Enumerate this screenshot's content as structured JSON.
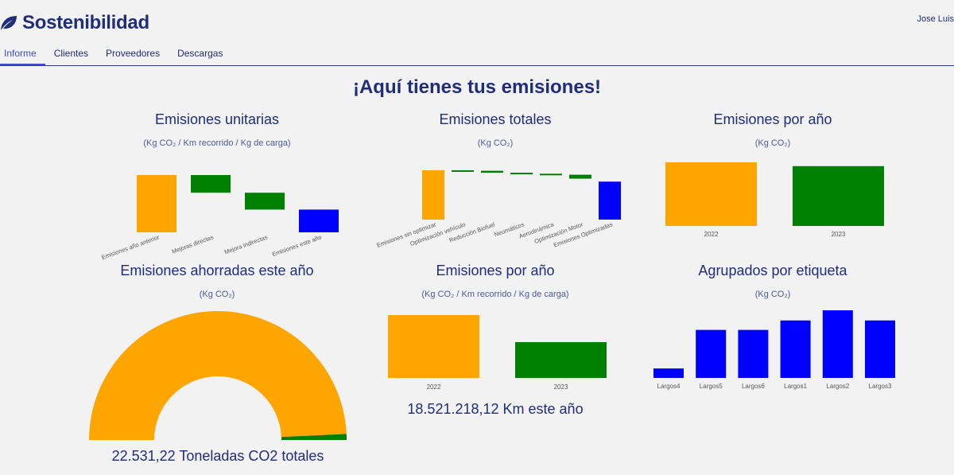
{
  "app": {
    "title": "Sostenibilidad",
    "user": "Jose Luis",
    "logo_icon": "leaf-icon"
  },
  "nav": {
    "tabs": [
      {
        "label": "Informe",
        "active": true
      },
      {
        "label": "Clientes",
        "active": false
      },
      {
        "label": "Proveedores",
        "active": false
      },
      {
        "label": "Descargas",
        "active": false
      }
    ]
  },
  "hero": {
    "title": "¡Aquí tienes tus emisiones!"
  },
  "colors": {
    "orange": "#ffa500",
    "green": "#008000",
    "blue": "#0000ff",
    "navy": "#1f2d7a"
  },
  "panels": {
    "unitarias": {
      "title": "Emisiones unitarias",
      "sub": "(Kg CO₂ / Km recorrido / Kg de carga)"
    },
    "totales": {
      "title": "Emisiones totales",
      "sub": "(Kg CO₂)"
    },
    "por_ano_top": {
      "title": "Emisiones por año",
      "sub": "(Kg CO₂)"
    },
    "ahorradas": {
      "title": "Emisiones ahorradas este año",
      "sub": "(Kg CO₂)",
      "stat": "22.531,22 Toneladas CO2 totales"
    },
    "por_ano_bottom": {
      "title": "Emisiones por año",
      "sub": "(Kg CO₂ / Km recorrido / Kg de carga)",
      "stat": "18.521.218,12 Km este año"
    },
    "etiqueta": {
      "title": "Agrupados por etiqueta",
      "sub": "(Kg CO₂)"
    }
  },
  "chart_data": [
    {
      "id": "unitarias",
      "type": "waterfall",
      "categories": [
        "Emisiones año anterior",
        "Mejoras directas",
        "Mejora indirectas",
        "Emisiones este año"
      ],
      "start": [
        0,
        0.68,
        0.47,
        0
      ],
      "end": [
        0.68,
        0.47,
        0.27,
        0.27
      ],
      "ylim": [
        0,
        0.68
      ],
      "colors": [
        "#ffa500",
        "#008000",
        "#008000",
        "#0000ff"
      ]
    },
    {
      "id": "totales",
      "type": "waterfall",
      "categories": [
        "Emisiones sin optimizar",
        "Optimización vehículo",
        "Reducción Biofuel",
        "Neumáticos",
        "Aerodinámica",
        "Optimización Motor",
        "Emisiones Optimizadas"
      ],
      "start": [
        0,
        100,
        99,
        95,
        93,
        91,
        0
      ],
      "end": [
        100,
        99,
        95,
        93,
        91,
        83,
        77
      ],
      "ylim": [
        0,
        100
      ],
      "colors": [
        "#ffa500",
        "#008000",
        "#008000",
        "#008000",
        "#008000",
        "#008000",
        "#0000ff"
      ]
    },
    {
      "id": "por_ano_top",
      "type": "bar",
      "categories": [
        "2022",
        "2023"
      ],
      "values": [
        100,
        94
      ],
      "ylim": [
        0,
        100
      ],
      "colors": [
        "#ffa500",
        "#008000"
      ]
    },
    {
      "id": "ahorradas",
      "type": "pie",
      "values": [
        98.5,
        1.5
      ],
      "colors": [
        "#ffa500",
        "#008000"
      ]
    },
    {
      "id": "por_ano_bottom",
      "type": "bar",
      "categories": [
        "2022",
        "2023"
      ],
      "values": [
        100,
        57
      ],
      "ylim": [
        0,
        100
      ],
      "colors": [
        "#ffa500",
        "#008000"
      ]
    },
    {
      "id": "etiqueta",
      "type": "bar",
      "categories": [
        "Largos4",
        "Largos5",
        "Largos6",
        "Largos1",
        "Largos2",
        "Largos3"
      ],
      "values": [
        14,
        71,
        71,
        85,
        100,
        85
      ],
      "ylim": [
        0,
        100
      ],
      "colors": [
        "#0000ff",
        "#0000ff",
        "#0000ff",
        "#0000ff",
        "#0000ff",
        "#0000ff"
      ]
    }
  ]
}
